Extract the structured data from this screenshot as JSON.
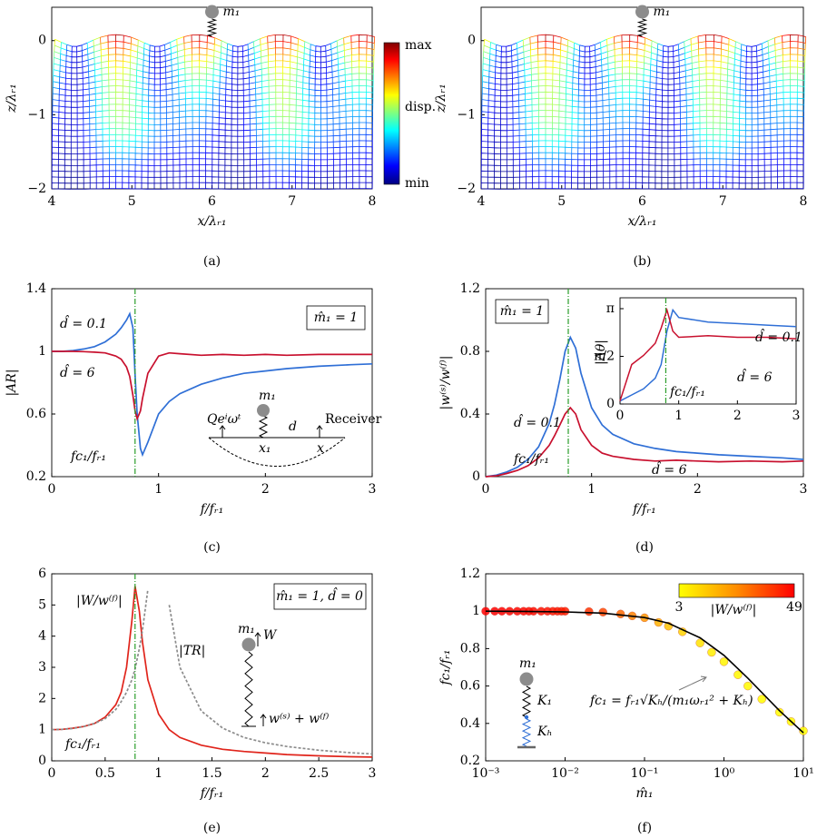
{
  "chart_data": [
    {
      "type": "mesh",
      "caption": "(a)",
      "xlabel": "x/λᵣ₁",
      "ylabel": "z/λᵣ₁",
      "xlim": [
        4,
        8
      ],
      "xticks": [
        4,
        5,
        6,
        7,
        8
      ],
      "ylim": [
        -2,
        0.45
      ],
      "yticks": [
        0,
        {
          "value": -1,
          "label": "−1"
        },
        {
          "value": -2,
          "label": "−2"
        }
      ],
      "annotations": [
        "m₁"
      ],
      "colorbar": {
        "labels": [
          "max",
          "disp.",
          "min"
        ]
      }
    },
    {
      "type": "mesh",
      "caption": "(b)",
      "xlabel": "x/λᵣ₁",
      "ylabel": "z/λᵣ₁",
      "xlim": [
        4,
        8
      ],
      "xticks": [
        4,
        5,
        6,
        7,
        8
      ],
      "ylim": [
        -2,
        0.45
      ],
      "yticks": [
        0,
        {
          "value": -1,
          "label": "−1"
        },
        {
          "value": -2,
          "label": "−2"
        }
      ],
      "annotations": [
        "m₁"
      ]
    },
    {
      "type": "line",
      "caption": "(c)",
      "xlabel": "f/fᵣ₁",
      "ylabel": "|AR|",
      "xlim": [
        0,
        3
      ],
      "xticks": [
        0,
        1,
        2,
        3
      ],
      "ylim": [
        0.2,
        1.4
      ],
      "yticks": [
        0.2,
        0.6,
        1,
        1.4
      ],
      "x": [
        0,
        0.1,
        0.2,
        0.3,
        0.4,
        0.5,
        0.6,
        0.65,
        0.7,
        0.73,
        0.76,
        0.78,
        0.8,
        0.83,
        0.85,
        0.9,
        1.0,
        1.1,
        1.2,
        1.4,
        1.6,
        1.8,
        2.0,
        2.2,
        2.5,
        2.8,
        3.0
      ],
      "series": [
        {
          "name": "d̂ = 0.1",
          "color": "#2f6fd6",
          "values": [
            1.0,
            1.0,
            1.005,
            1.015,
            1.03,
            1.06,
            1.11,
            1.15,
            1.2,
            1.24,
            1.15,
            0.85,
            0.6,
            0.38,
            0.34,
            0.42,
            0.6,
            0.68,
            0.73,
            0.79,
            0.83,
            0.86,
            0.875,
            0.89,
            0.905,
            0.915,
            0.92
          ]
        },
        {
          "name": "d̂ = 6",
          "color": "#c8102e",
          "values": [
            1,
            1,
            1,
            0.998,
            0.995,
            0.99,
            0.97,
            0.95,
            0.9,
            0.84,
            0.72,
            0.62,
            0.57,
            0.62,
            0.7,
            0.86,
            0.97,
            0.99,
            0.985,
            0.975,
            0.98,
            0.975,
            0.98,
            0.975,
            0.98,
            0.98,
            0.98
          ]
        }
      ],
      "vline": 0.78,
      "vline_label": "fc₁/fᵣ₁",
      "annotations": [
        "m̂₁ = 1",
        "Qeⁱωᵗ",
        "m₁",
        "x₁",
        "d",
        "x",
        "Receiver"
      ]
    },
    {
      "type": "line",
      "caption": "(d)",
      "xlabel": "f/fᵣ₁",
      "ylabel": "|w⁽ˢ⁾/w⁽ᶠ⁾|",
      "xlim": [
        0,
        3
      ],
      "xticks": [
        0,
        1,
        2,
        3
      ],
      "ylim": [
        0,
        1.2
      ],
      "yticks": [
        0,
        0.4,
        0.8,
        1.2
      ],
      "x": [
        0,
        0.1,
        0.2,
        0.3,
        0.4,
        0.5,
        0.6,
        0.65,
        0.7,
        0.75,
        0.8,
        0.85,
        0.9,
        1.0,
        1.1,
        1.2,
        1.4,
        1.6,
        1.8,
        2.0,
        2.2,
        2.5,
        2.8,
        3.0
      ],
      "series": [
        {
          "name": "d̂ = 0.1",
          "color": "#2f6fd6",
          "values": [
            0,
            0.01,
            0.03,
            0.06,
            0.11,
            0.19,
            0.34,
            0.46,
            0.62,
            0.8,
            0.89,
            0.82,
            0.66,
            0.44,
            0.33,
            0.27,
            0.21,
            0.18,
            0.16,
            0.15,
            0.14,
            0.13,
            0.12,
            0.11
          ]
        },
        {
          "name": "d̂ = 6",
          "color": "#c8102e",
          "values": [
            0,
            0.005,
            0.02,
            0.04,
            0.07,
            0.12,
            0.2,
            0.26,
            0.33,
            0.4,
            0.44,
            0.4,
            0.3,
            0.2,
            0.15,
            0.13,
            0.11,
            0.1,
            0.105,
            0.1,
            0.095,
            0.1,
            0.095,
            0.1
          ]
        }
      ],
      "vline": 0.78,
      "vline_label": "fc₁/fᵣ₁",
      "annotations": [
        "m̂₁ = 1"
      ],
      "inset": {
        "ylabel": "|Δθ|",
        "xlim": [
          0,
          3
        ],
        "xticks": [
          0,
          1,
          2,
          3
        ],
        "ylim": [
          0,
          3.5
        ],
        "yticks": [
          0,
          {
            "value": 1.5708,
            "label": "π/2"
          },
          {
            "value": 3.1416,
            "label": "π"
          }
        ],
        "x": [
          0,
          0.2,
          0.4,
          0.6,
          0.7,
          0.8,
          0.9,
          1.0,
          1.5,
          2,
          2.5,
          3
        ],
        "series": [
          {
            "name": "d̂ = 0.1",
            "color": "#2f6fd6",
            "values": [
              0.1,
              0.3,
              0.5,
              0.85,
              1.3,
              2.4,
              3.1,
              2.85,
              2.7,
              2.65,
              2.6,
              2.55
            ]
          },
          {
            "name": "d̂ = 6",
            "color": "#c8102e",
            "values": [
              0.1,
              1.3,
              1.6,
              2.0,
              2.5,
              3.1,
              2.4,
              2.2,
              2.25,
              2.2,
              2.2,
              2.15
            ]
          }
        ],
        "vline": 0.78,
        "vline_label": "fc₁/fᵣ₁"
      }
    },
    {
      "type": "line",
      "caption": "(e)",
      "xlabel": "f/fᵣ₁",
      "xlim": [
        0,
        3
      ],
      "xticks": [
        0,
        0.5,
        1,
        1.5,
        2,
        2.5,
        3
      ],
      "ylim": [
        0,
        6
      ],
      "yticks": [
        0,
        1,
        2,
        3,
        4,
        5,
        6
      ],
      "x": [
        0,
        0.1,
        0.2,
        0.3,
        0.4,
        0.5,
        0.6,
        0.65,
        0.7,
        0.75,
        0.78,
        0.82,
        0.85,
        0.9,
        1.0,
        1.1,
        1.2,
        1.4,
        1.6,
        1.8,
        2.0,
        2.2,
        2.5,
        2.8,
        3.0
      ],
      "series": [
        {
          "name": "|W/w⁽ᶠ⁾|",
          "color": "#e0241b",
          "values": [
            1,
            1.01,
            1.05,
            1.1,
            1.2,
            1.4,
            1.8,
            2.2,
            3.0,
            4.5,
            5.6,
            4.8,
            3.8,
            2.6,
            1.5,
            1.0,
            0.75,
            0.5,
            0.37,
            0.3,
            0.25,
            0.2,
            0.16,
            0.13,
            0.12
          ]
        },
        {
          "name": "|TR|",
          "color": "#8c8c8c",
          "dashed": true,
          "values": [
            1,
            1.01,
            1.04,
            1.1,
            1.2,
            1.35,
            1.65,
            1.9,
            2.2,
            2.6,
            2.95,
            3.6,
            4.2,
            5.5,
            null,
            5.0,
            3.0,
            1.6,
            1.05,
            0.75,
            0.58,
            0.46,
            0.34,
            0.26,
            0.22
          ]
        }
      ],
      "vline": 0.78,
      "vline_label": "fc₁/fᵣ₁",
      "annotations": [
        "m̂₁ = 1, d̂ = 0",
        "m₁",
        "W",
        "w⁽ˢ⁾ + w⁽ᶠ⁾"
      ]
    },
    {
      "type": "scatter",
      "caption": "(f)",
      "xlabel": "m̂₁",
      "ylabel": "fc₁/fᵣ₁",
      "xscale": "log",
      "xlim": [
        0.001,
        10
      ],
      "xticks": [
        {
          "value": 0.001,
          "label": "10⁻³"
        },
        {
          "value": 0.01,
          "label": "10⁻²"
        },
        {
          "value": 0.1,
          "label": "10⁻¹"
        },
        {
          "value": 1,
          "label": "10⁰"
        },
        {
          "value": 10,
          "label": "10¹"
        }
      ],
      "ylim": [
        0.2,
        1.2
      ],
      "yticks": [
        0.2,
        0.4,
        0.6,
        0.8,
        1,
        1.2
      ],
      "curve": {
        "color": "#000000",
        "x": [
          0.001,
          0.003,
          0.01,
          0.03,
          0.1,
          0.2,
          0.5,
          1,
          2,
          5,
          10
        ],
        "values": [
          1,
          0.999,
          0.996,
          0.99,
          0.966,
          0.936,
          0.858,
          0.764,
          0.642,
          0.468,
          0.35
        ]
      },
      "points": {
        "x": [
          0.001,
          0.0013,
          0.0016,
          0.002,
          0.0025,
          0.003,
          0.0035,
          0.004,
          0.005,
          0.006,
          0.007,
          0.008,
          0.009,
          0.01,
          0.02,
          0.03,
          0.05,
          0.07,
          0.1,
          0.15,
          0.2,
          0.3,
          0.5,
          0.7,
          1,
          1.5,
          2,
          3,
          5,
          7,
          10
        ],
        "values": [
          1,
          1,
          1,
          1,
          1,
          1,
          1,
          1,
          1,
          1,
          1,
          1,
          1,
          1,
          0.998,
          0.995,
          0.985,
          0.975,
          0.965,
          0.94,
          0.92,
          0.89,
          0.83,
          0.78,
          0.73,
          0.66,
          0.6,
          0.53,
          0.46,
          0.41,
          0.36
        ],
        "c": [
          49,
          49,
          49,
          48,
          48,
          48,
          47,
          47,
          46,
          46,
          45,
          45,
          44,
          44,
          40,
          36,
          30,
          26,
          22,
          17,
          14,
          11,
          8,
          6,
          5,
          4.5,
          4,
          3.6,
          3.3,
          3.1,
          3
        ]
      },
      "colorbar": {
        "ticks": [
          3,
          49
        ],
        "label": "|W/w⁽ᶠ⁾|"
      },
      "annotations": [
        "fc₁ = fᵣ₁√Kₕ/(m₁ωᵣ₁² + Kₕ)",
        "m₁",
        "K₁",
        "Kₕ"
      ]
    }
  ]
}
